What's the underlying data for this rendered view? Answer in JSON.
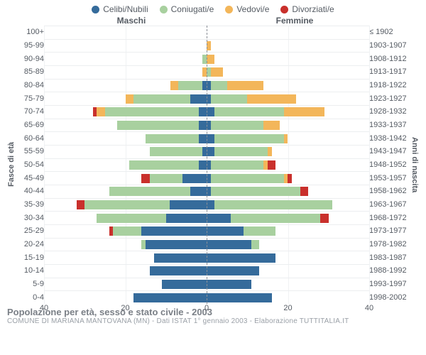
{
  "colors": {
    "celibi": "#356b9b",
    "coniugati": "#a8d09f",
    "vedovi": "#f3b65a",
    "divorziati": "#c9302c",
    "grid": "#f0f2f4",
    "row_border": "#eceef0",
    "center_dash": "#8a8f96",
    "text": "#555b63",
    "footer_title": "#7a7f86",
    "footer_sub": "#9aa0a7"
  },
  "legend": {
    "celibi": "Celibi/Nubili",
    "coniugati": "Coniugati/e",
    "vedovi": "Vedovi/e",
    "divorziati": "Divorziati/e"
  },
  "headers": {
    "left": "Maschi",
    "right": "Femmine"
  },
  "axis_titles": {
    "left": "Fasce di età",
    "right": "Anni di nascita"
  },
  "x": {
    "max": 40,
    "ticks_left": [
      40,
      20,
      0
    ],
    "ticks_right": [
      0,
      20,
      40
    ]
  },
  "rows": [
    {
      "age": "100+",
      "birth": "≤ 1902",
      "m": {
        "c": 0,
        "co": 0,
        "v": 0,
        "d": 0
      },
      "f": {
        "c": 0,
        "co": 0,
        "v": 0,
        "d": 0
      }
    },
    {
      "age": "95-99",
      "birth": "1903-1907",
      "m": {
        "c": 0,
        "co": 0,
        "v": 0,
        "d": 0
      },
      "f": {
        "c": 0,
        "co": 0,
        "v": 1,
        "d": 0
      }
    },
    {
      "age": "90-94",
      "birth": "1908-1912",
      "m": {
        "c": 0,
        "co": 1,
        "v": 0,
        "d": 0
      },
      "f": {
        "c": 0,
        "co": 0,
        "v": 2,
        "d": 0
      }
    },
    {
      "age": "85-89",
      "birth": "1913-1917",
      "m": {
        "c": 0,
        "co": 0,
        "v": 1,
        "d": 0
      },
      "f": {
        "c": 0,
        "co": 1,
        "v": 3,
        "d": 0
      }
    },
    {
      "age": "80-84",
      "birth": "1918-1922",
      "m": {
        "c": 1,
        "co": 6,
        "v": 2,
        "d": 0
      },
      "f": {
        "c": 1,
        "co": 4,
        "v": 9,
        "d": 0
      }
    },
    {
      "age": "75-79",
      "birth": "1923-1927",
      "m": {
        "c": 4,
        "co": 14,
        "v": 2,
        "d": 0
      },
      "f": {
        "c": 1,
        "co": 9,
        "v": 12,
        "d": 0
      }
    },
    {
      "age": "70-74",
      "birth": "1928-1932",
      "m": {
        "c": 2,
        "co": 23,
        "v": 2,
        "d": 1
      },
      "f": {
        "c": 2,
        "co": 17,
        "v": 10,
        "d": 0
      }
    },
    {
      "age": "65-69",
      "birth": "1933-1937",
      "m": {
        "c": 2,
        "co": 20,
        "v": 0,
        "d": 0
      },
      "f": {
        "c": 1,
        "co": 13,
        "v": 4,
        "d": 0
      }
    },
    {
      "age": "60-64",
      "birth": "1938-1942",
      "m": {
        "c": 2,
        "co": 13,
        "v": 0,
        "d": 0
      },
      "f": {
        "c": 2,
        "co": 17,
        "v": 1,
        "d": 0
      }
    },
    {
      "age": "55-59",
      "birth": "1943-1947",
      "m": {
        "c": 1,
        "co": 13,
        "v": 0,
        "d": 0
      },
      "f": {
        "c": 2,
        "co": 13,
        "v": 1,
        "d": 0
      }
    },
    {
      "age": "50-54",
      "birth": "1948-1952",
      "m": {
        "c": 2,
        "co": 17,
        "v": 0,
        "d": 0
      },
      "f": {
        "c": 1,
        "co": 13,
        "v": 1,
        "d": 2
      }
    },
    {
      "age": "45-49",
      "birth": "1953-1957",
      "m": {
        "c": 6,
        "co": 8,
        "v": 0,
        "d": 2
      },
      "f": {
        "c": 1,
        "co": 18,
        "v": 1,
        "d": 1
      }
    },
    {
      "age": "40-44",
      "birth": "1958-1962",
      "m": {
        "c": 4,
        "co": 20,
        "v": 0,
        "d": 0
      },
      "f": {
        "c": 1,
        "co": 22,
        "v": 0,
        "d": 2
      }
    },
    {
      "age": "35-39",
      "birth": "1963-1967",
      "m": {
        "c": 9,
        "co": 21,
        "v": 0,
        "d": 2
      },
      "f": {
        "c": 2,
        "co": 29,
        "v": 0,
        "d": 0
      }
    },
    {
      "age": "30-34",
      "birth": "1968-1972",
      "m": {
        "c": 10,
        "co": 17,
        "v": 0,
        "d": 0
      },
      "f": {
        "c": 6,
        "co": 22,
        "v": 0,
        "d": 2
      }
    },
    {
      "age": "25-29",
      "birth": "1973-1977",
      "m": {
        "c": 16,
        "co": 7,
        "v": 0,
        "d": 1
      },
      "f": {
        "c": 9,
        "co": 8,
        "v": 0,
        "d": 0
      }
    },
    {
      "age": "20-24",
      "birth": "1978-1982",
      "m": {
        "c": 15,
        "co": 1,
        "v": 0,
        "d": 0
      },
      "f": {
        "c": 11,
        "co": 2,
        "v": 0,
        "d": 0
      }
    },
    {
      "age": "15-19",
      "birth": "1983-1987",
      "m": {
        "c": 13,
        "co": 0,
        "v": 0,
        "d": 0
      },
      "f": {
        "c": 17,
        "co": 0,
        "v": 0,
        "d": 0
      }
    },
    {
      "age": "10-14",
      "birth": "1988-1992",
      "m": {
        "c": 14,
        "co": 0,
        "v": 0,
        "d": 0
      },
      "f": {
        "c": 13,
        "co": 0,
        "v": 0,
        "d": 0
      }
    },
    {
      "age": "5-9",
      "birth": "1993-1997",
      "m": {
        "c": 11,
        "co": 0,
        "v": 0,
        "d": 0
      },
      "f": {
        "c": 11,
        "co": 0,
        "v": 0,
        "d": 0
      }
    },
    {
      "age": "0-4",
      "birth": "1998-2002",
      "m": {
        "c": 18,
        "co": 0,
        "v": 0,
        "d": 0
      },
      "f": {
        "c": 16,
        "co": 0,
        "v": 0,
        "d": 0
      }
    }
  ],
  "footer": {
    "title": "Popolazione per età, sesso e stato civile - 2003",
    "sub": "COMUNE DI MARIANA MANTOVANA (MN) - Dati ISTAT 1° gennaio 2003 - Elaborazione TUTTITALIA.IT"
  }
}
